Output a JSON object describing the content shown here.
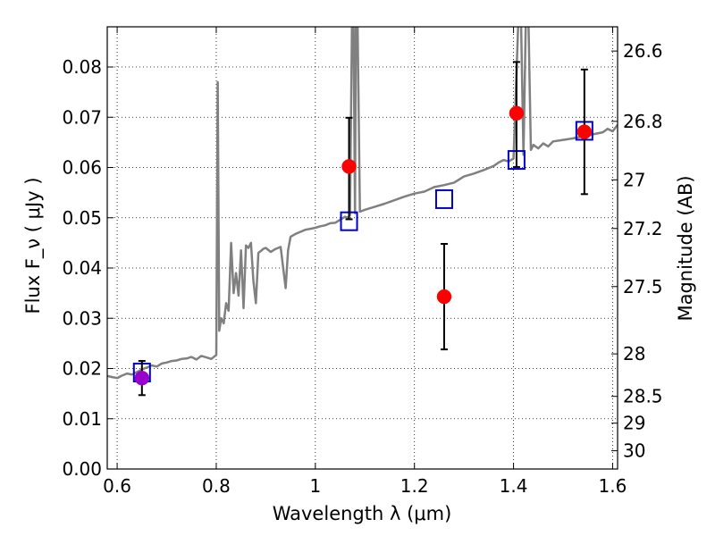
{
  "chart_data": {
    "type": "scatter",
    "xlabel": "Wavelength λ (μm)",
    "ylabel": "Flux F_ν ( μJy )",
    "y2label": "Magnitude (AB)",
    "xlim": [
      0.58,
      1.61
    ],
    "ylim": [
      0.0,
      0.088
    ],
    "grid": true,
    "x_ticks": [
      0.6,
      0.8,
      1.0,
      1.2,
      1.4,
      1.6
    ],
    "x_tick_labels": [
      "0.6",
      "0.8",
      "1",
      "1.2",
      "1.4",
      "1.6"
    ],
    "y_ticks": [
      0.0,
      0.01,
      0.02,
      0.03,
      0.04,
      0.05,
      0.06,
      0.07,
      0.08
    ],
    "y_tick_labels": [
      "0.00",
      "0.01",
      "0.02",
      "0.03",
      "0.04",
      "0.05",
      "0.06",
      "0.07",
      "0.08"
    ],
    "mag_ticks": [
      26.6,
      26.8,
      27,
      27.2,
      27.5,
      28,
      28.5,
      29,
      30
    ],
    "mag_tick_labels": [
      "26.6",
      "26.8",
      "27",
      "27.2",
      "27.5",
      "28",
      "28.5",
      "29",
      "30"
    ],
    "colors": {
      "spectrum": "#808080",
      "observed": "#ff0000",
      "model": "#0000cc",
      "overlap": "#9900cc",
      "errorbar": "#000000"
    },
    "spectrum": {
      "x": [
        0.58,
        0.59,
        0.6,
        0.61,
        0.62,
        0.63,
        0.64,
        0.65,
        0.66,
        0.67,
        0.68,
        0.69,
        0.7,
        0.71,
        0.72,
        0.73,
        0.74,
        0.75,
        0.76,
        0.77,
        0.78,
        0.79,
        0.8,
        0.803,
        0.806,
        0.81,
        0.815,
        0.82,
        0.825,
        0.83,
        0.835,
        0.84,
        0.845,
        0.85,
        0.855,
        0.86,
        0.865,
        0.87,
        0.875,
        0.88,
        0.885,
        0.89,
        0.895,
        0.9,
        0.91,
        0.92,
        0.93,
        0.94,
        0.945,
        0.95,
        0.96,
        0.97,
        0.98,
        0.99,
        1.0,
        1.01,
        1.02,
        1.03,
        1.04,
        1.05,
        1.06,
        1.065,
        1.07,
        1.074,
        1.077,
        1.08,
        1.082,
        1.085,
        1.09,
        1.1,
        1.12,
        1.14,
        1.16,
        1.18,
        1.2,
        1.22,
        1.24,
        1.26,
        1.28,
        1.3,
        1.32,
        1.34,
        1.36,
        1.37,
        1.38,
        1.39,
        1.4,
        1.41,
        1.415,
        1.42,
        1.425,
        1.43,
        1.435,
        1.44,
        1.45,
        1.46,
        1.47,
        1.48,
        1.5,
        1.52,
        1.54,
        1.56,
        1.58,
        1.59,
        1.6,
        1.61
      ],
      "y": [
        0.0185,
        0.0183,
        0.0181,
        0.0186,
        0.019,
        0.0188,
        0.0193,
        0.0198,
        0.0202,
        0.0206,
        0.0204,
        0.021,
        0.0212,
        0.0215,
        0.0216,
        0.0219,
        0.022,
        0.0223,
        0.0218,
        0.0225,
        0.0222,
        0.0219,
        0.0227,
        0.077,
        0.0275,
        0.03,
        0.029,
        0.033,
        0.0315,
        0.045,
        0.035,
        0.039,
        0.0345,
        0.0435,
        0.032,
        0.0445,
        0.044,
        0.045,
        0.0375,
        0.033,
        0.043,
        0.0434,
        0.0438,
        0.044,
        0.0432,
        0.0438,
        0.0442,
        0.036,
        0.0435,
        0.0462,
        0.0468,
        0.0472,
        0.0476,
        0.0478,
        0.048,
        0.0483,
        0.0485,
        0.0489,
        0.049,
        0.0496,
        0.0502,
        0.05,
        0.0505,
        0.09,
        0.09,
        0.0509,
        0.09,
        0.09,
        0.0512,
        0.0516,
        0.0522,
        0.0528,
        0.0535,
        0.0542,
        0.0548,
        0.0552,
        0.0561,
        0.0565,
        0.057,
        0.0582,
        0.0588,
        0.0595,
        0.0603,
        0.061,
        0.0615,
        0.0612,
        0.0618,
        0.09,
        0.09,
        0.0625,
        0.09,
        0.09,
        0.0635,
        0.0645,
        0.0638,
        0.0648,
        0.0642,
        0.0652,
        0.0655,
        0.0658,
        0.0662,
        0.0666,
        0.067,
        0.0677,
        0.0672,
        0.0685
      ]
    },
    "observed": [
      {
        "x": 0.65,
        "y": 0.0181,
        "err_low": 0.0034,
        "err_high": 0.0034
      },
      {
        "x": 1.068,
        "y": 0.0602,
        "err_low": 0.0105,
        "err_high": 0.0097
      },
      {
        "x": 1.26,
        "y": 0.0343,
        "err_low": 0.0105,
        "err_high": 0.0105
      },
      {
        "x": 1.406,
        "y": 0.0708,
        "err_low": 0.0107,
        "err_high": 0.0102
      },
      {
        "x": 1.543,
        "y": 0.0671,
        "err_low": 0.0124,
        "err_high": 0.0124
      }
    ],
    "model": [
      {
        "x": 0.65,
        "y": 0.0192
      },
      {
        "x": 1.068,
        "y": 0.0493
      },
      {
        "x": 1.26,
        "y": 0.0537
      },
      {
        "x": 1.406,
        "y": 0.0615
      },
      {
        "x": 1.543,
        "y": 0.0673
      }
    ]
  }
}
